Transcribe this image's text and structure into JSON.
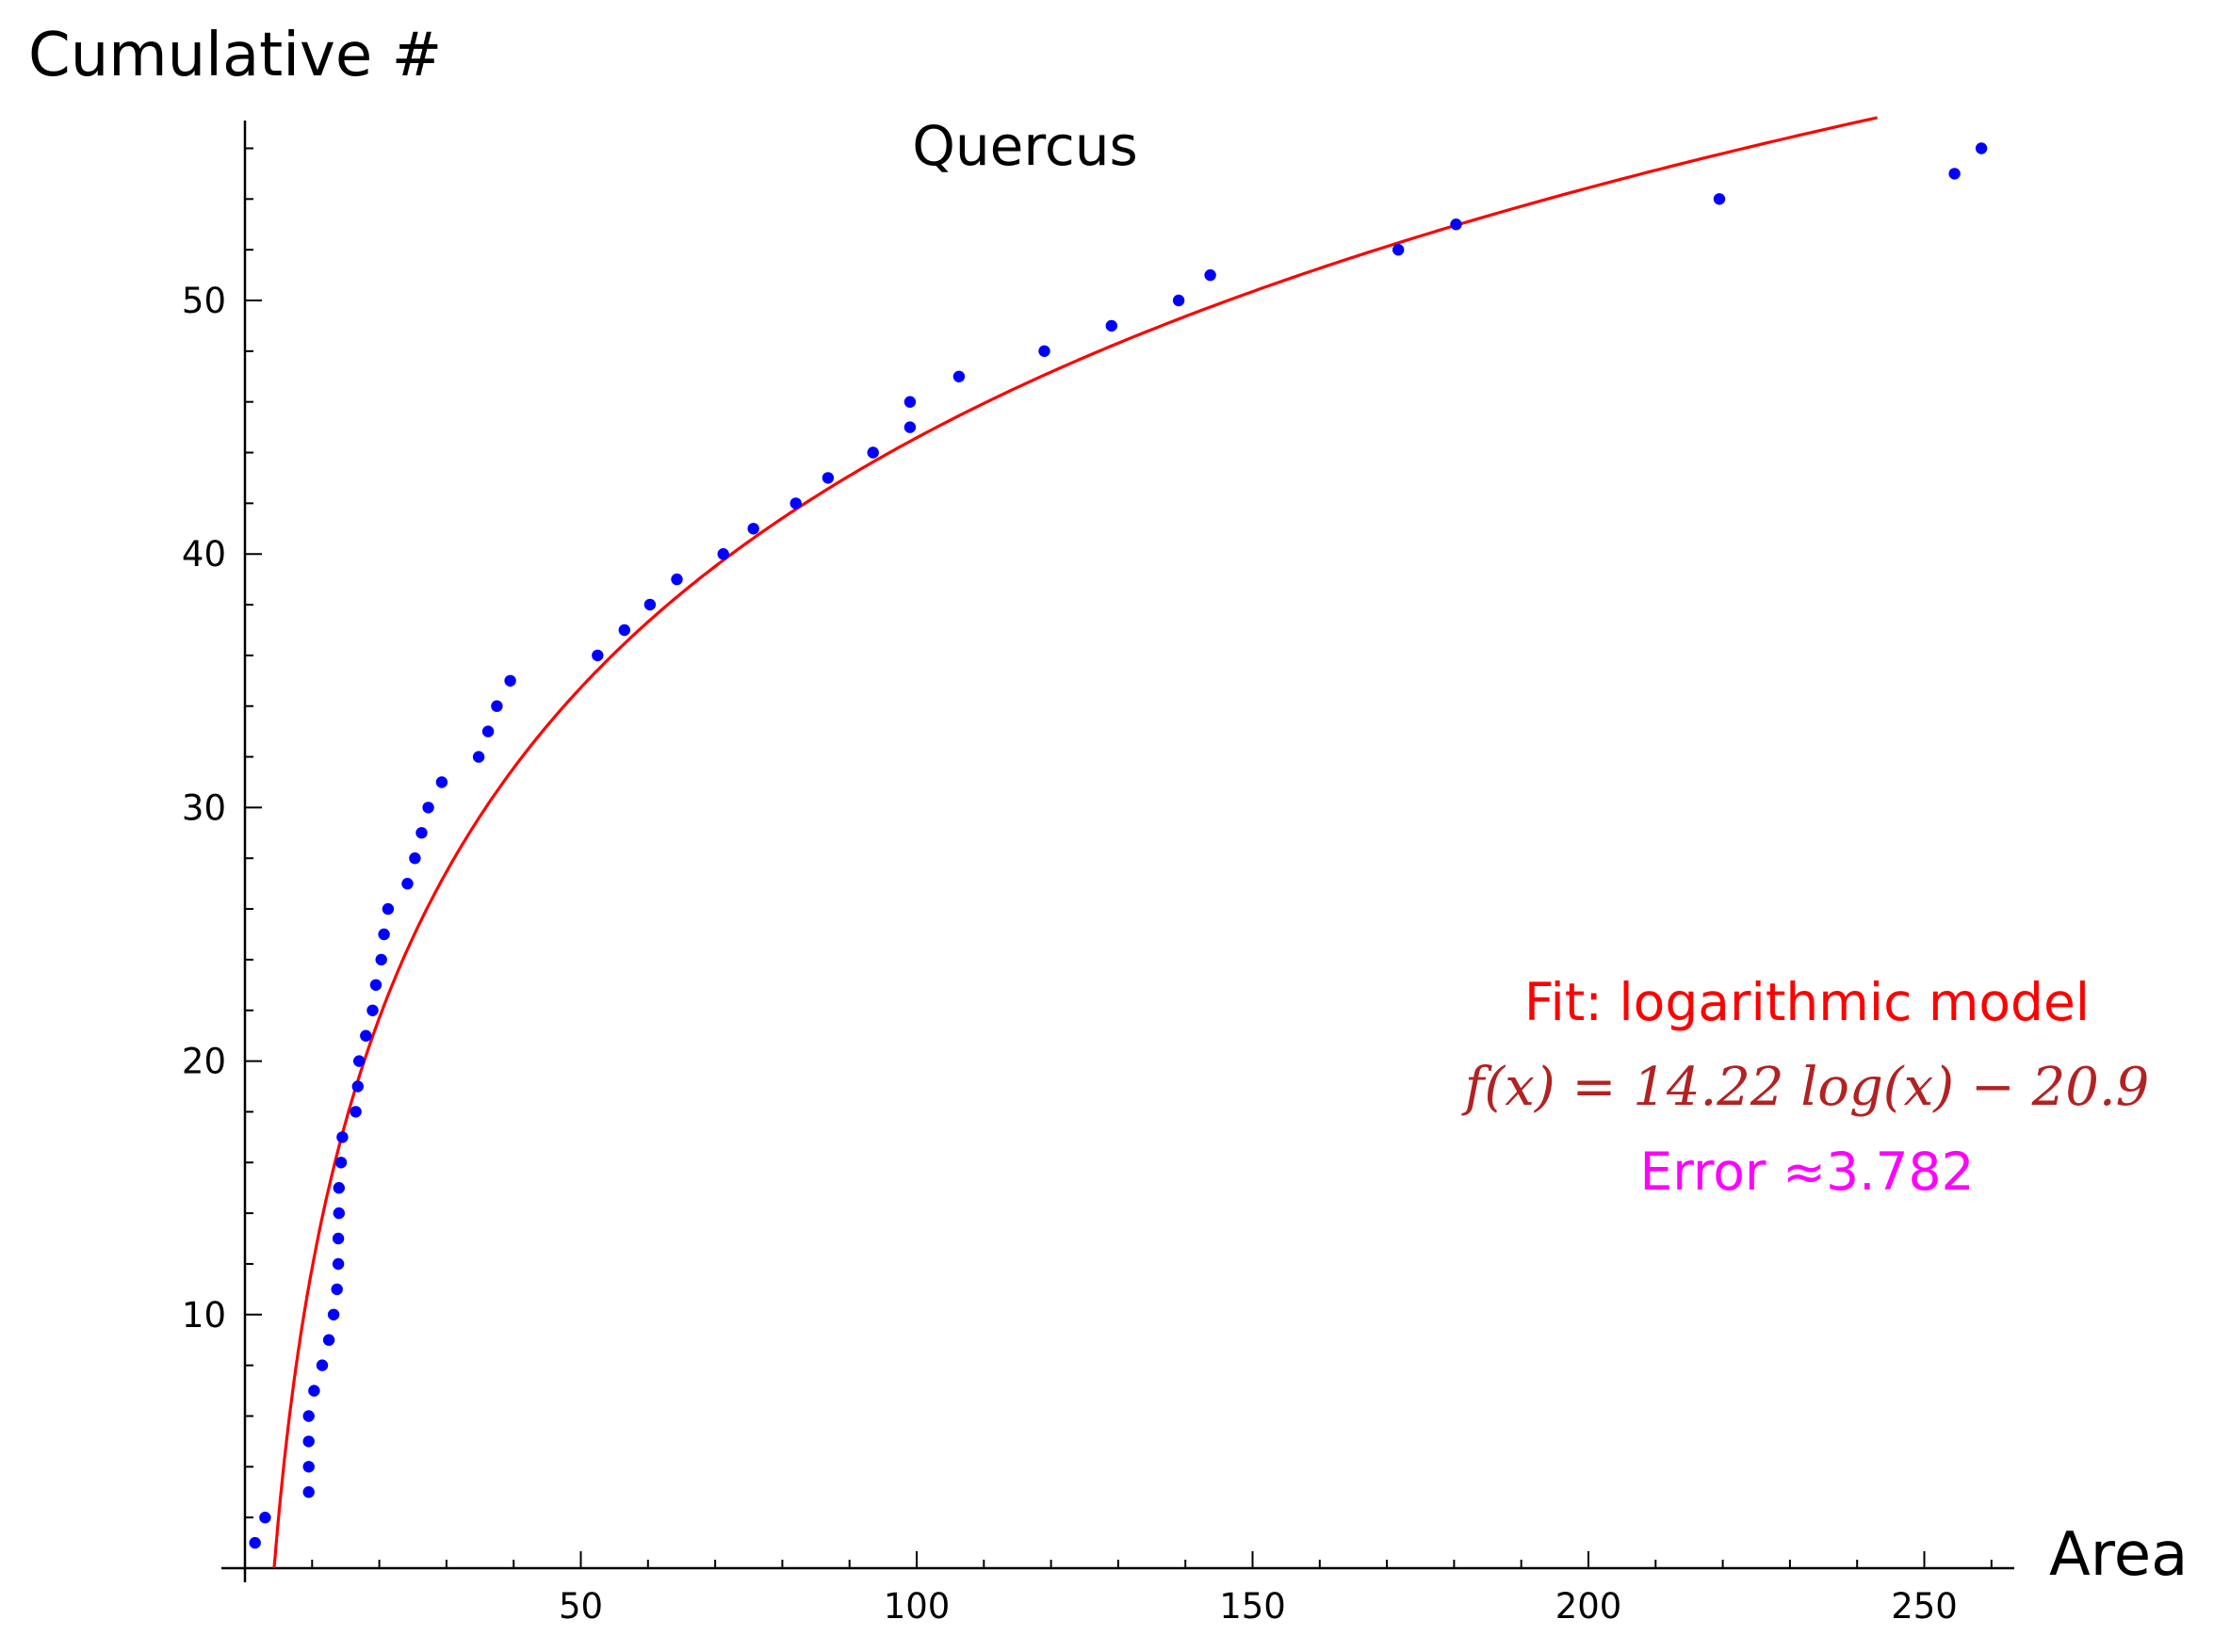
{
  "chart_data": {
    "type": "scatter",
    "title": "Quercus",
    "xlabel": "Area",
    "ylabel": "Cumulative #",
    "xlim": [
      -3,
      263
    ],
    "ylim": [
      0,
      57
    ],
    "x_ticks": [
      50,
      100,
      150,
      200,
      250
    ],
    "y_ticks": [
      10,
      20,
      30,
      40,
      50
    ],
    "grid": false,
    "colors": {
      "points": "#0000ff",
      "fit": "#ff0000",
      "equation": "#b22222",
      "error": "#ff00ff",
      "axes": "#000000"
    },
    "series": [
      {
        "values": [
          [
            1.5,
            1
          ],
          [
            3,
            2
          ],
          [
            9.5,
            3
          ],
          [
            9.5,
            4
          ],
          [
            9.5,
            5
          ],
          [
            9.5,
            6
          ],
          [
            10.3,
            7
          ],
          [
            11.5,
            8
          ],
          [
            12.5,
            9
          ],
          [
            13.2,
            10
          ],
          [
            13.7,
            11
          ],
          [
            13.9,
            12
          ],
          [
            13.9,
            13
          ],
          [
            14,
            14
          ],
          [
            14,
            15
          ],
          [
            14.3,
            16
          ],
          [
            14.5,
            17
          ],
          [
            16.5,
            18
          ],
          [
            16.8,
            19
          ],
          [
            17,
            20
          ],
          [
            18,
            21
          ],
          [
            19,
            22
          ],
          [
            19.5,
            23
          ],
          [
            20.3,
            24
          ],
          [
            20.7,
            25
          ],
          [
            21.3,
            26
          ],
          [
            24.2,
            27
          ],
          [
            25.3,
            28
          ],
          [
            26.3,
            29
          ],
          [
            27.3,
            30
          ],
          [
            29.3,
            31
          ],
          [
            34.8,
            32
          ],
          [
            36.2,
            33
          ],
          [
            37.5,
            34
          ],
          [
            39.5,
            35
          ],
          [
            52.5,
            36
          ],
          [
            56.5,
            37
          ],
          [
            60.3,
            38
          ],
          [
            64.3,
            39
          ],
          [
            71.2,
            40
          ],
          [
            75.7,
            41
          ],
          [
            82,
            42
          ],
          [
            86.8,
            43
          ],
          [
            93.5,
            44
          ],
          [
            99,
            45
          ],
          [
            99,
            46
          ],
          [
            106.3,
            47
          ],
          [
            119,
            48
          ],
          [
            129,
            49
          ],
          [
            139,
            50
          ],
          [
            143.7,
            51
          ],
          [
            171.7,
            52
          ],
          [
            180.3,
            53
          ],
          [
            219.5,
            54
          ],
          [
            254.5,
            55
          ],
          [
            258.5,
            56
          ]
        ]
      },
      {
        "type": "line",
        "function": {
          "a": 14.22,
          "b": -20.9,
          "x_range": [
            4.35,
            243
          ]
        }
      }
    ],
    "annotations": {
      "model": "Fit: logarithmic model",
      "equation": "f(x) = 14.22 log(x) − 20.9",
      "error": "Error ≈3.782"
    }
  }
}
